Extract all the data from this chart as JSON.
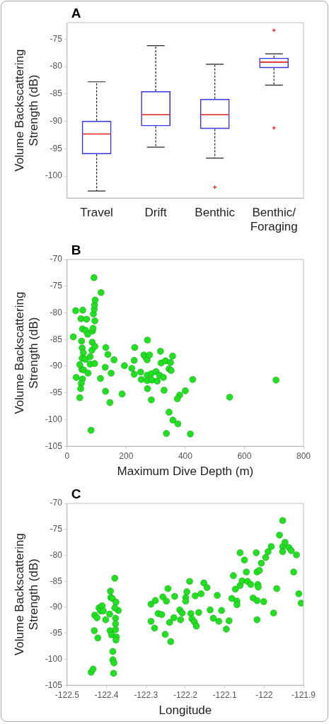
{
  "chart_data": [
    {
      "type": "box",
      "title": "A",
      "ylabel": "Volume Backscattering Strength (dB)",
      "categories": [
        "Travel",
        "Drift",
        "Benthic",
        "Benthic/Foraging"
      ],
      "ylim": [
        -104,
        -72
      ],
      "yticks": [
        -100,
        -95,
        -90,
        -85,
        -80,
        -75
      ],
      "grid": false,
      "series": [
        {
          "color": "#3a3ae0",
          "boxes": [
            {
              "low": -102.7,
              "q1": -96.0,
              "median": -92.3,
              "q3": -89.9,
              "high": -82.8
            },
            {
              "low": -94.7,
              "q1": -90.9,
              "median": -88.8,
              "q3": -84.5,
              "high": -76.2
            },
            {
              "low": -96.7,
              "q1": -91.4,
              "median": -88.8,
              "q3": -85.9,
              "high": -79.6,
              "outliers": [
                -102.0
              ]
            },
            {
              "low": -83.4,
              "q1": -80.3,
              "median": -79.2,
              "q3": -78.4,
              "high": -77.7,
              "outliers": [
                -73.4,
                -91.2
              ]
            }
          ]
        }
      ]
    },
    {
      "type": "scatter",
      "title": "B",
      "xlabel": "Maximum Dive Depth (m)",
      "ylabel": "Volume Backscattering Strength (dB)",
      "xlim": [
        0,
        800
      ],
      "xticks": [
        0,
        200,
        400,
        600,
        800
      ],
      "ylim": [
        -105,
        -70
      ],
      "yticks": [
        -105,
        -100,
        -95,
        -90,
        -85,
        -80,
        -75,
        -70
      ],
      "grid": false,
      "marker": "circle",
      "series": [
        {
          "color": "#21e021",
          "x": [
            21,
            29,
            53,
            47,
            66,
            52,
            63,
            70,
            49,
            51,
            55,
            51,
            62,
            50,
            56,
            71,
            31,
            52,
            48,
            46,
            43,
            81,
            78,
            78,
            84,
            85,
            86,
            88,
            89,
            92,
            93,
            95,
            94,
            94,
            93,
            91,
            115,
            113,
            131,
            138,
            129,
            149,
            159,
            130,
            145,
            194,
            186,
            219,
            227,
            227,
            229,
            249,
            251,
            260,
            266,
            271,
            272,
            279,
            271,
            285,
            271,
            272,
            285,
            287,
            301,
            305,
            313,
            316,
            318,
            326,
            333,
            328,
            350,
            357,
            345,
            352,
            345,
            358,
            375,
            336,
            381,
            373,
            400,
            425,
            417,
            550,
            707,
            43
          ],
          "values": [
            -84.5,
            -79.6,
            -79.5,
            -81.1,
            -81.2,
            -83.0,
            -83.3,
            -84.0,
            -85.3,
            -86.6,
            -87.5,
            -88.5,
            -88.7,
            -90.6,
            -90.7,
            -91.3,
            -92.1,
            -92.4,
            -93.2,
            -94.2,
            -95.9,
            -102.0,
            -88.2,
            -89.6,
            -87.0,
            -85.5,
            -83.4,
            -82.9,
            -80.2,
            -79.3,
            -78.5,
            -77.6,
            -81.5,
            -86.3,
            -89.5,
            -73.4,
            -76.2,
            -92.3,
            -86.5,
            -87.8,
            -90.2,
            -91.3,
            -88.8,
            -94.7,
            -96.8,
            -89.9,
            -95.2,
            -90.4,
            -91.5,
            -88.9,
            -86.5,
            -91.1,
            -92.5,
            -87.9,
            -88.3,
            -88.8,
            -85.1,
            -87.9,
            -91.7,
            -91.4,
            -92.7,
            -94.2,
            -96.3,
            -92.6,
            -91.0,
            -92.8,
            -91.7,
            -87.2,
            -89.4,
            -92.1,
            -89.0,
            -94.5,
            -89.3,
            -88.1,
            -90.5,
            -90.8,
            -98.6,
            -100.1,
            -100.8,
            -102.6,
            -95.4,
            -96.1,
            -94.6,
            -92.5,
            -102.7,
            -95.8,
            -92.6,
            -89.7
          ]
        }
      ]
    },
    {
      "type": "scatter",
      "title": "C",
      "xlabel": "Longitude",
      "ylabel": "Volume Backscattering Strength (dB)",
      "xlim": [
        -122.5,
        -121.9
      ],
      "xticks": [
        -122.5,
        -122.4,
        -122.3,
        -122.2,
        -122.1,
        -122,
        -121.9
      ],
      "ylim": [
        -105,
        -70
      ],
      "yticks": [
        -105,
        -100,
        -95,
        -90,
        -85,
        -80,
        -75,
        -70
      ],
      "grid": false,
      "marker": "circle",
      "series": [
        {
          "color": "#21e021",
          "x": [
            -122.439,
            -122.434,
            -122.431,
            -122.43,
            -122.424,
            -122.422,
            -122.419,
            -122.415,
            -122.411,
            -122.408,
            -122.402,
            -122.39,
            -122.389,
            -122.392,
            -122.391,
            -122.387,
            -122.385,
            -122.384,
            -122.384,
            -122.381,
            -122.382,
            -122.379,
            -122.376,
            -122.377,
            -122.377,
            -122.377,
            -122.375,
            -122.376,
            -122.37,
            -122.379,
            -122.287,
            -122.287,
            -122.278,
            -122.276,
            -122.269,
            -122.26,
            -122.257,
            -122.251,
            -122.248,
            -122.244,
            -122.24,
            -122.237,
            -122.227,
            -122.229,
            -122.214,
            -122.208,
            -122.212,
            -122.199,
            -122.196,
            -122.199,
            -122.189,
            -122.186,
            -122.183,
            -122.177,
            -122.172,
            -122.175,
            -122.166,
            -122.16,
            -122.153,
            -122.145,
            -122.137,
            -122.129,
            -122.119,
            -122.115,
            -122.108,
            -122.096,
            -122.089,
            -122.082,
            -122.078,
            -122.073,
            -122.069,
            -122.069,
            -122.061,
            -122.061,
            -122.056,
            -122.05,
            -122.045,
            -122.042,
            -122.034,
            -122.028,
            -122.02,
            -122.018,
            -122.018,
            -122.016,
            -122.015,
            -122.018,
            -122.012,
            -122.007,
            -122.001,
            -121.996,
            -121.99,
            -121.982,
            -121.976,
            -121.968,
            -121.961,
            -121.953,
            -121.953,
            -121.953,
            -121.947,
            -121.937,
            -121.931,
            -121.918,
            -121.925,
            -121.912,
            -121.906
          ],
          "values": [
            -102.5,
            -101.9,
            -94.5,
            -91.5,
            -92.0,
            -95.9,
            -90.1,
            -90.7,
            -89.7,
            -90.7,
            -92.4,
            -86.9,
            -88.1,
            -91.3,
            -94.5,
            -95.3,
            -88.3,
            -98.5,
            -100.1,
            -100.7,
            -102.7,
            -84.4,
            -89.0,
            -92.1,
            -93.2,
            -94.3,
            -95.7,
            -96.3,
            -90.6,
            -90.1,
            -89.4,
            -92.7,
            -94.0,
            -88.7,
            -91.2,
            -91.4,
            -88.0,
            -95.2,
            -88.8,
            -86.4,
            -92.9,
            -96.6,
            -87.9,
            -92.0,
            -90.5,
            -91.1,
            -92.4,
            -88.1,
            -87.0,
            -88.8,
            -85.0,
            -91.2,
            -92.2,
            -92.8,
            -93.6,
            -87.8,
            -91.0,
            -87.4,
            -85.3,
            -86.2,
            -90.5,
            -92.1,
            -87.7,
            -92.7,
            -90.6,
            -94.2,
            -92.6,
            -88.3,
            -83.9,
            -86.5,
            -88.8,
            -89.5,
            -79.5,
            -85.8,
            -84.9,
            -80.9,
            -83.2,
            -85.0,
            -85.6,
            -88.2,
            -79.5,
            -83.2,
            -92.4,
            -85.6,
            -86.1,
            -88.7,
            -82.9,
            -81.5,
            -88.9,
            -80.4,
            -79.3,
            -78.3,
            -91.1,
            -86.4,
            -76.1,
            -73.3,
            -78.3,
            -79.3,
            -77.5,
            -78.5,
            -79.1,
            -79.9,
            -83.2,
            -87.4,
            -89.2
          ]
        }
      ]
    }
  ]
}
